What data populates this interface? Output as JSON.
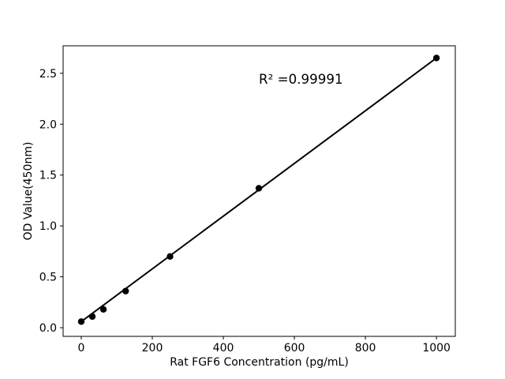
{
  "chart_data": {
    "type": "scatter",
    "title": "",
    "xlabel": "Rat FGF6 Concentration (pg/mL)",
    "ylabel": "OD Value(450nm)",
    "x": [
      0,
      31.25,
      62.5,
      125,
      250,
      500,
      1000
    ],
    "y": [
      0.06,
      0.11,
      0.18,
      0.36,
      0.7,
      1.37,
      2.65
    ],
    "fit_line": {
      "x1": 0,
      "y1": 0.06,
      "x2": 1000,
      "y2": 2.65
    },
    "annotation": {
      "text": "R² =0.99991",
      "x": 500,
      "y": 2.4
    },
    "xlim": [
      -51,
      1053
    ],
    "ylim": [
      -0.085,
      2.77
    ],
    "xticks": [
      0,
      200,
      400,
      600,
      800,
      1000
    ],
    "xtick_labels": [
      "0",
      "200",
      "400",
      "600",
      "800",
      "1000"
    ],
    "yticks": [
      0,
      0.5,
      1.0,
      1.5,
      2.0,
      2.5
    ],
    "ytick_labels": [
      "0.0",
      "0.5",
      "1.0",
      "1.5",
      "2.0",
      "2.5"
    ],
    "grid": false,
    "legend": "none",
    "colors": {
      "line": "#000000",
      "marker": "#000000",
      "axis": "#000000",
      "text": "#000000",
      "background": "#ffffff"
    }
  }
}
